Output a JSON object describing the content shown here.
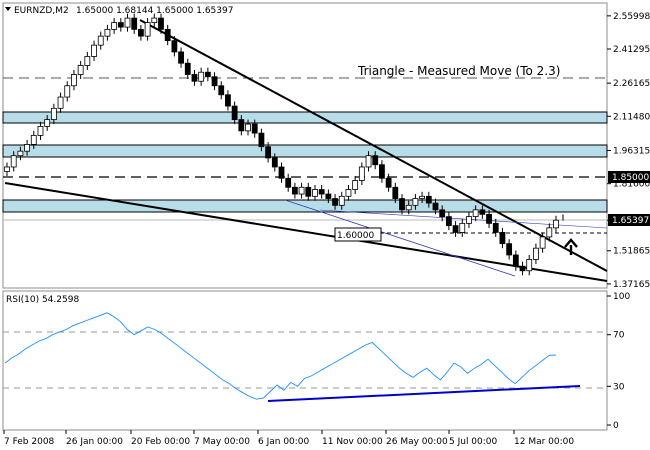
{
  "header": {
    "symbol": "EURNZD,M2",
    "ohlc": "1.65000 1.68144 1.65000 1.65397"
  },
  "annotation": "Triangle - Measured Move (To 2.3)",
  "level_label_1": "1.85000",
  "level_label_2": "1.60000",
  "current_price_label": "1.65397",
  "rsi_title": "RSI(10) 54.2598",
  "colors": {
    "band_fill": "#b7dde8",
    "rsi_line": "#1e90ff",
    "rsi_trend": "#0000cc",
    "thin_trend": "#2b3bbd"
  },
  "chart_data": [
    {
      "type": "candlestick",
      "y_ticks": [
        "2.55998",
        "2.41295",
        "2.26165",
        "2.11480",
        "1.96315",
        "1.81600",
        "1.65397",
        "1.51865",
        "1.37165"
      ],
      "ylim": [
        1.3535,
        2.6169
      ],
      "x_ticks": [
        "7 Feb 2008",
        "26 Jan 00:00",
        "20 Feb 00:00",
        "7 May 00:00",
        "6 Jan 00:00",
        "11 Nov 00:00",
        "26 May 00:00",
        "5 Jul 00:00",
        "12 Mar 00:00"
      ],
      "closes": [
        1.89,
        1.94,
        1.96,
        1.99,
        2.03,
        2.07,
        2.1,
        2.15,
        2.2,
        2.25,
        2.3,
        2.34,
        2.38,
        2.43,
        2.47,
        2.5,
        2.53,
        2.51,
        2.55,
        2.5,
        2.47,
        2.53,
        2.55,
        2.5,
        2.45,
        2.4,
        2.35,
        2.3,
        2.27,
        2.31,
        2.29,
        2.25,
        2.21,
        2.16,
        2.1,
        2.05,
        2.08,
        2.04,
        1.98,
        1.93,
        1.89,
        1.84,
        1.8,
        1.77,
        1.8,
        1.76,
        1.79,
        1.77,
        1.75,
        1.72,
        1.76,
        1.79,
        1.83,
        1.89,
        1.94,
        1.9,
        1.84,
        1.8,
        1.75,
        1.7,
        1.72,
        1.75,
        1.76,
        1.73,
        1.7,
        1.67,
        1.63,
        1.6,
        1.64,
        1.67,
        1.7,
        1.68,
        1.64,
        1.6,
        1.55,
        1.5,
        1.45,
        1.43,
        1.48,
        1.53,
        1.58,
        1.62,
        1.65397
      ],
      "levels": [
        {
          "name": "upper band",
          "from": 2.107,
          "to": 2.144
        },
        {
          "name": "middle band",
          "from": 1.955,
          "to": 2.005
        },
        {
          "name": "lower band",
          "from": 1.705,
          "to": 1.755
        },
        {
          "name": "dashed level",
          "value": 1.85
        },
        {
          "name": "dashed level (top)",
          "value": 2.29
        },
        {
          "name": "dashed level (bottom)",
          "value": 1.6
        }
      ]
    },
    {
      "type": "line",
      "title": "RSI(10) 54.2598",
      "y_ticks": [
        0,
        30,
        70,
        100
      ],
      "ylim": [
        0,
        100
      ],
      "values": [
        48,
        52,
        55,
        59,
        62,
        65,
        67,
        70,
        72,
        74,
        77,
        79,
        81,
        83,
        85,
        87,
        84,
        80,
        74,
        70,
        73,
        76,
        74,
        71,
        67,
        63,
        59,
        55,
        51,
        47,
        43,
        39,
        35,
        32,
        28,
        25,
        22,
        20,
        21,
        26,
        31,
        27,
        33,
        30,
        36,
        38,
        41,
        44,
        47,
        50,
        53,
        56,
        59,
        62,
        64,
        59,
        54,
        49,
        44,
        40,
        37,
        41,
        44,
        39,
        35,
        41,
        48,
        45,
        40,
        44,
        47,
        51,
        46,
        41,
        36,
        32,
        37,
        42,
        46,
        50,
        54,
        54.26
      ]
    }
  ]
}
